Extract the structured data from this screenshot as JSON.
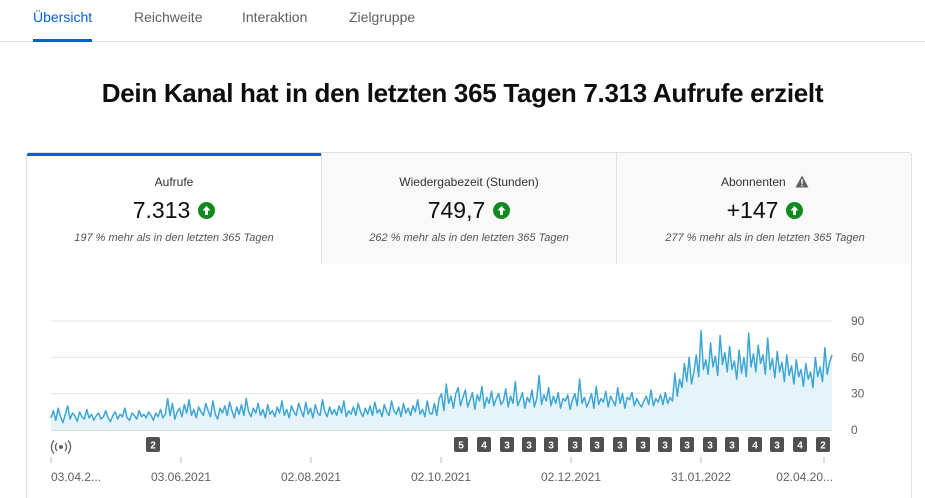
{
  "tabs": [
    {
      "label": "Übersicht",
      "active": true
    },
    {
      "label": "Reichweite",
      "active": false
    },
    {
      "label": "Interaktion",
      "active": false
    },
    {
      "label": "Zielgruppe",
      "active": false
    }
  ],
  "headline": "Dein Kanal hat in den letzten 365 Tagen 7.313 Aufrufe erzielt",
  "metrics": [
    {
      "label": "Aufrufe",
      "value": "7.313",
      "note": "197 % mehr als in den letzten 365 Tagen",
      "trend_icon": "arrow-up-icon"
    },
    {
      "label": "Wiedergabezeit (Stunden)",
      "value": "749,7",
      "note": "262 % mehr als in den letzten 365 Tagen",
      "trend_icon": "arrow-up-icon"
    },
    {
      "label": "Abonnenten",
      "value": "+147",
      "note": "277 % mehr als in den letzten 365 Tagen",
      "trend_icon": "arrow-up-icon",
      "warning_icon": "warning-icon"
    }
  ],
  "colors": {
    "accent": "#065fd4",
    "line": "#3ea6d4",
    "fill": "#e6f4fa",
    "up": "#0f8a1e",
    "badge": "#505050"
  },
  "chart_data": {
    "type": "area",
    "ylim": [
      0,
      90
    ],
    "y_ticks": [
      "90",
      "60",
      "30",
      "0"
    ],
    "x_ticks": [
      "03.04.2...",
      "03.06.2021",
      "02.08.2021",
      "02.10.2021",
      "02.12.2021",
      "31.01.2022",
      "02.04.20..."
    ],
    "live_icon": "live-broadcast-icon",
    "upload_badges": [
      "2",
      "5",
      "4",
      "3",
      "3",
      "3",
      "3",
      "3",
      "3",
      "3",
      "3",
      "3",
      "3",
      "3",
      "4",
      "3",
      "4",
      "2"
    ],
    "series": [
      {
        "values": [
          10,
          16,
          8,
          18,
          11,
          6,
          13,
          20,
          9,
          14,
          12,
          7,
          15,
          11,
          9,
          17,
          10,
          13,
          8,
          12,
          14,
          9,
          11,
          16,
          10,
          7,
          12,
          15,
          9,
          13,
          11,
          18,
          10,
          8,
          14,
          12,
          9,
          16,
          11,
          13,
          10,
          15,
          12,
          8,
          14,
          11,
          17,
          10,
          13,
          26,
          12,
          22,
          9,
          15,
          18,
          11,
          21,
          14,
          25,
          12,
          17,
          10,
          19,
          15,
          12,
          22,
          16,
          11,
          24,
          13,
          9,
          18,
          14,
          20,
          12,
          23,
          16,
          10,
          19,
          13,
          21,
          12,
          26,
          15,
          11,
          18,
          14,
          22,
          12,
          17,
          10,
          21,
          13,
          16,
          11,
          19,
          14,
          24,
          12,
          17,
          10,
          20,
          15,
          12,
          22,
          16,
          11,
          23,
          13,
          18,
          10,
          21,
          14,
          12,
          25,
          15,
          11,
          19,
          13,
          17,
          12,
          20,
          14,
          24,
          11,
          16,
          13,
          19,
          12,
          22,
          15,
          11,
          18,
          13,
          20,
          12,
          23,
          14,
          17,
          11,
          21,
          15,
          12,
          24,
          16,
          13,
          19,
          11,
          22,
          14,
          18,
          12,
          20,
          15,
          25,
          13,
          17,
          11,
          24,
          14,
          13,
          22,
          12,
          26,
          30,
          16,
          38,
          22,
          28,
          18,
          30,
          35,
          20,
          27,
          33,
          19,
          25,
          31,
          17,
          29,
          24,
          36,
          18,
          27,
          22,
          32,
          20,
          26,
          30,
          21,
          24,
          34,
          19,
          28,
          22,
          40,
          20,
          25,
          31,
          18,
          27,
          23,
          33,
          19,
          26,
          45,
          21,
          29,
          24,
          35,
          20,
          28,
          22,
          31,
          18,
          26,
          24,
          29,
          17,
          25,
          30,
          20,
          42,
          22,
          27,
          19,
          24,
          30,
          18,
          36,
          21,
          26,
          23,
          32,
          19,
          28,
          24,
          20,
          35,
          22,
          30,
          18,
          27,
          25,
          31,
          20,
          26,
          22,
          19,
          24,
          28,
          21,
          33,
          20,
          26,
          23,
          29,
          21,
          31,
          22,
          27,
          24,
          47,
          28,
          42,
          35,
          55,
          40,
          60,
          38,
          48,
          62,
          44,
          82,
          50,
          58,
          46,
          72,
          52,
          61,
          45,
          78,
          54,
          64,
          48,
          69,
          50,
          57,
          42,
          66,
          47,
          60,
          44,
          80,
          52,
          63,
          48,
          70,
          55,
          62,
          46,
          76,
          50,
          59,
          43,
          65,
          48,
          56,
          40,
          62,
          45,
          53,
          38,
          58,
          44,
          50,
          36,
          55,
          42,
          48,
          35,
          60,
          44,
          52,
          40,
          68,
          46,
          56,
          62
        ]
      }
    ]
  }
}
